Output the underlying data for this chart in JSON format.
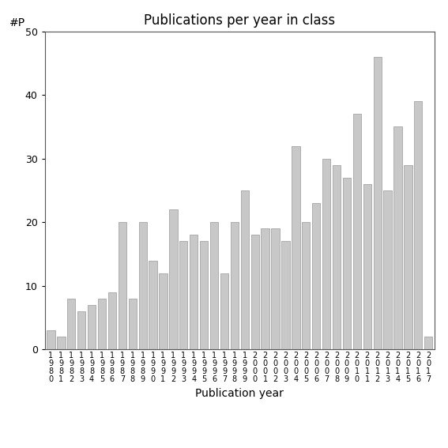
{
  "years": [
    "1980",
    "1981",
    "1982",
    "1983",
    "1984",
    "1985",
    "1986",
    "1987",
    "1988",
    "1989",
    "1990",
    "1991",
    "1992",
    "1993",
    "1994",
    "1995",
    "1996",
    "1997",
    "1998",
    "1999",
    "2000",
    "2001",
    "2002",
    "2003",
    "2004",
    "2005",
    "2006",
    "2007",
    "2008",
    "2009",
    "2010",
    "2011",
    "2012",
    "2013",
    "2014",
    "2015",
    "2016",
    "2017"
  ],
  "values": [
    3,
    2,
    8,
    6,
    7,
    8,
    9,
    20,
    8,
    20,
    14,
    12,
    22,
    17,
    18,
    17,
    20,
    12,
    20,
    25,
    18,
    19,
    19,
    17,
    32,
    20,
    23,
    30,
    29,
    27,
    37,
    26,
    46,
    25,
    35,
    29,
    39,
    2
  ],
  "bar_color": "#c8c8c8",
  "bar_edgecolor": "#999999",
  "title": "Publications per year in class",
  "xlabel": "Publication year",
  "ylabel": "#P",
  "ylim": [
    0,
    50
  ],
  "yticks": [
    0,
    10,
    20,
    30,
    40,
    50
  ],
  "bg_color": "#ffffff",
  "title_fontsize": 12,
  "label_fontsize": 10,
  "tick_fontsize": 9,
  "xtick_fontsize": 7
}
